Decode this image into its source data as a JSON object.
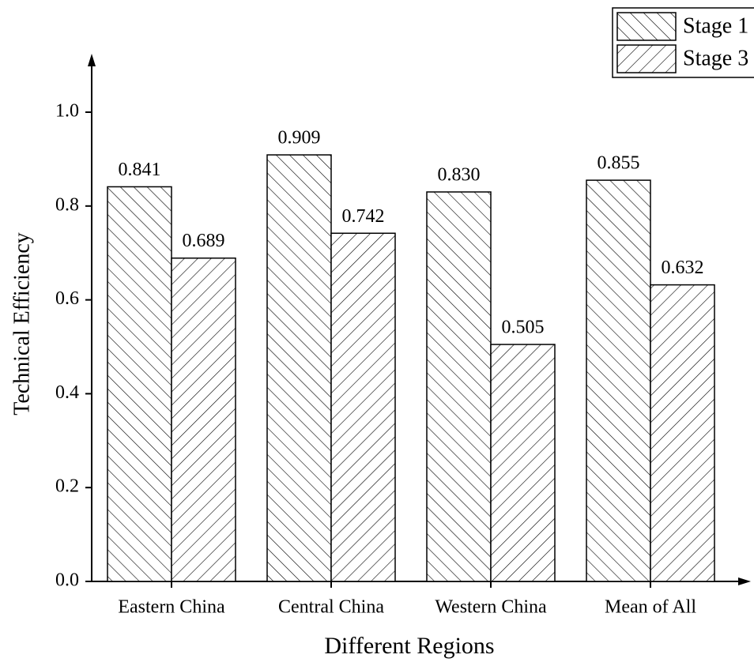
{
  "chart_data": {
    "type": "bar",
    "x_label": "Different Regions",
    "y_label": "Technical Efficiency",
    "categories": [
      "Eastern China",
      "Central China",
      "Western China",
      "Mean of All"
    ],
    "series": [
      {
        "name": "Stage 1",
        "color": "#000000",
        "hatch": "backslash",
        "values": [
          0.841,
          0.909,
          0.83,
          0.855
        ],
        "value_labels": [
          "0.841",
          "0.909",
          "0.830",
          "0.855"
        ]
      },
      {
        "name": "Stage 3",
        "color": "#000000",
        "hatch": "slash",
        "values": [
          0.689,
          0.742,
          0.505,
          0.632
        ],
        "value_labels": [
          "0.689",
          "0.742",
          "0.505",
          "0.632"
        ]
      }
    ],
    "ylim": [
      0,
      1.1
    ],
    "yticks": [
      {
        "value": 0,
        "label": "0.0"
      },
      0.2,
      0.4,
      0.6,
      0.8,
      {
        "value": 1,
        "label": "1.0"
      }
    ],
    "grid": false,
    "legend": "top-right"
  }
}
